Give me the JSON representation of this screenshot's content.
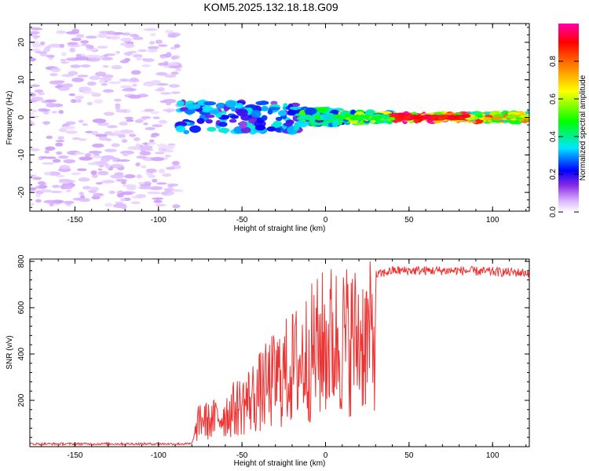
{
  "title": "KOM5.2025.132.18.18.G09",
  "chart_data": [
    {
      "type": "heatmap",
      "xlabel": "Height of straight line (km)",
      "ylabel": "Frequency (Hz)",
      "xlim": [
        -177,
        122
      ],
      "ylim": [
        -25,
        25
      ],
      "xticks": [
        -150,
        -100,
        -50,
        0,
        50,
        100
      ],
      "yticks": [
        -20,
        -10,
        0,
        10,
        20
      ],
      "colorbar": {
        "label": "Normalized spectral amplitude",
        "range": [
          0,
          1
        ],
        "ticks": [
          0.0,
          0.2,
          0.4,
          0.6,
          0.8
        ]
      },
      "bands": [
        {
          "x_start": -177,
          "x_end": -88,
          "freq_spread": 24,
          "amplitude": 0.05,
          "description_hidden": true
        },
        {
          "x_start": -88,
          "x_end": -15,
          "freq_spread": 4,
          "amplitude": 0.25
        },
        {
          "x_start": -15,
          "x_end": 10,
          "freq_spread": 2,
          "amplitude": 0.35
        },
        {
          "x_start": 10,
          "x_end": 40,
          "freq_spread": 1.2,
          "amplitude": 0.45
        },
        {
          "x_start": 40,
          "x_end": 85,
          "freq_spread": 0.8,
          "amplitude": 0.95
        },
        {
          "x_start": 85,
          "x_end": 122,
          "freq_spread": 1,
          "amplitude": 0.6
        }
      ]
    },
    {
      "type": "line",
      "xlabel": "Height of straight line (km)",
      "ylabel": "SNR (v/v)",
      "xlim": [
        -177,
        122
      ],
      "ylim": [
        0,
        810
      ],
      "xticks": [
        -150,
        -100,
        -50,
        0,
        50,
        100
      ],
      "yticks": [
        200,
        400,
        600,
        800
      ],
      "color": "#ee3333",
      "envelope": [
        {
          "x": -177,
          "y": 12
        },
        {
          "x": -80,
          "y": 12
        },
        {
          "x": -75,
          "y": 150
        },
        {
          "x": -70,
          "y": 130
        },
        {
          "x": -60,
          "y": 170
        },
        {
          "x": -50,
          "y": 220
        },
        {
          "x": -40,
          "y": 280
        },
        {
          "x": -30,
          "y": 350
        },
        {
          "x": -20,
          "y": 410
        },
        {
          "x": -10,
          "y": 480
        },
        {
          "x": 0,
          "y": 540
        },
        {
          "x": 10,
          "y": 600
        },
        {
          "x": 20,
          "y": 680
        },
        {
          "x": 30,
          "y": 740
        },
        {
          "x": 40,
          "y": 760
        },
        {
          "x": 60,
          "y": 760
        },
        {
          "x": 80,
          "y": 760
        },
        {
          "x": 100,
          "y": 755
        },
        {
          "x": 122,
          "y": 750
        }
      ]
    }
  ]
}
